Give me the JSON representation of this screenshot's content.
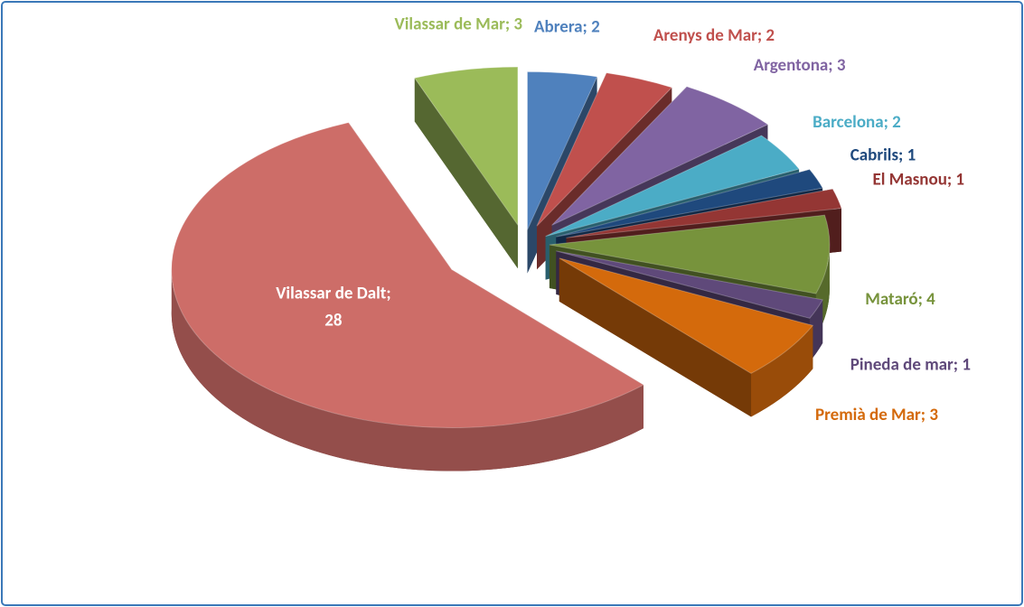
{
  "chart_data": {
    "type": "pie3d",
    "categories": [
      "Abrera",
      "Arenys de Mar",
      "Argentona",
      "Barcelona",
      "Cabrils",
      "El Masnou",
      "Mataró",
      "Pineda de mar",
      "Premià de Mar",
      "Vilassar de Dalt",
      "Vilassar de Mar"
    ],
    "values": [
      2,
      2,
      3,
      2,
      1,
      1,
      4,
      1,
      3,
      28,
      3
    ],
    "value_labels": [
      "Abrera; 2",
      "Arenys de Mar; 2",
      "Argentona; 3",
      "Barcelona; 2",
      "Cabrils; 1",
      "El Masnou; 1",
      "Mataró; 4",
      "Pineda de mar; 1",
      "Premià de Mar; 3",
      "Vilassar de Dalt; 28",
      "Vilassar de Mar; 3"
    ],
    "colors": [
      "#4f81bd",
      "#c0504d",
      "#8064a2",
      "#4bacc6",
      "#1f497d",
      "#943634",
      "#77933c",
      "#5f497a",
      "#d46a0c",
      "#cd6d68",
      "#9bbb59"
    ],
    "label_colors": [
      "#4f81bd",
      "#c0504d",
      "#8064a2",
      "#4bacc6",
      "#1f497d",
      "#943634",
      "#77933c",
      "#5f497a",
      "#d46a0c",
      "#ffffff",
      "#9bbb59"
    ]
  }
}
